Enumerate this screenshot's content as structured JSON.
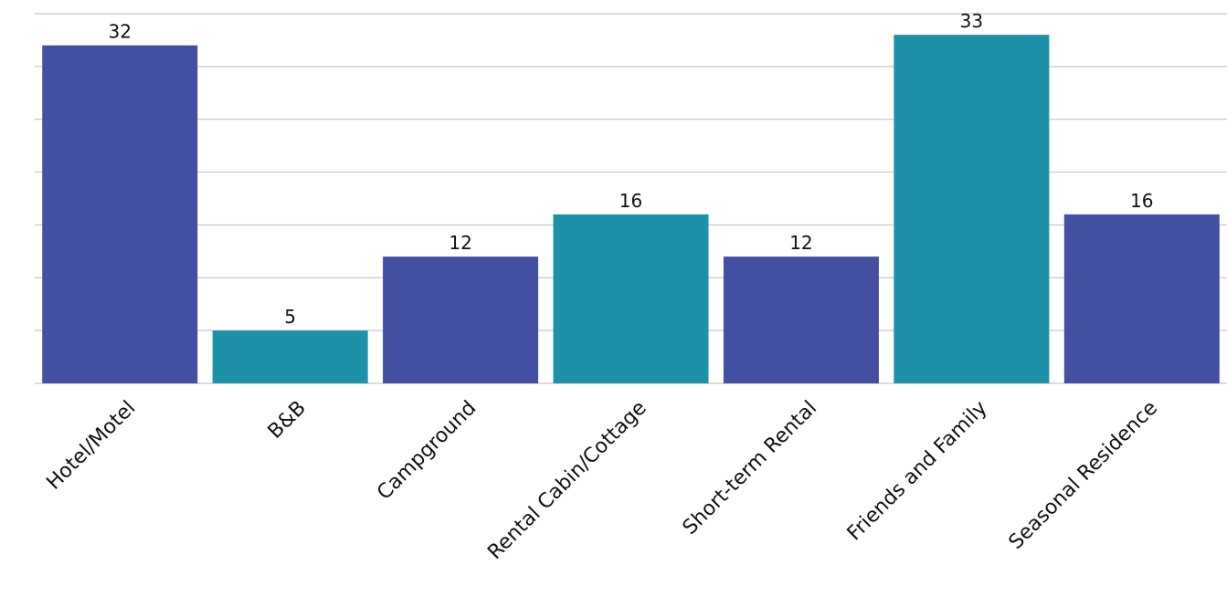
{
  "chart_data": {
    "type": "bar",
    "title": "",
    "xlabel": "",
    "ylabel": "",
    "categories": [
      "Hotel/Motel",
      "B&B",
      "Campground",
      "Rental Cabin/Cottage",
      "Short-term Rental",
      "Friends and Family",
      "Seasonal Residence"
    ],
    "values": [
      32,
      5,
      12,
      16,
      12,
      33,
      16
    ],
    "data_labels": [
      "32",
      "5",
      "12",
      "16",
      "12",
      "33",
      "16"
    ],
    "bar_colors": [
      "#434fa0",
      "#1e90a8",
      "#434fa0",
      "#1e90a8",
      "#434fa0",
      "#1e90a8",
      "#434fa0"
    ],
    "ylim": [
      0,
      35
    ],
    "y_gridlines": [
      0,
      5,
      10,
      15,
      20,
      25,
      30,
      35
    ],
    "grid": true,
    "y_axis_labels_shown": false,
    "legend": "none"
  }
}
